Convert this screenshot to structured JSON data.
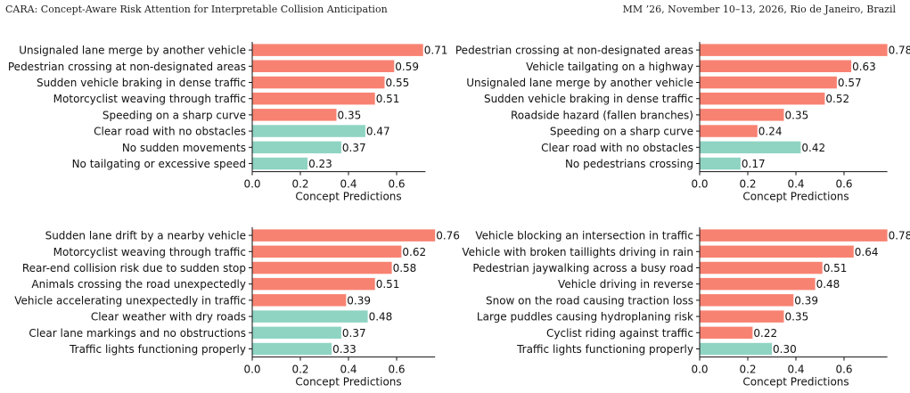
{
  "header": {
    "left": "CARA: Concept-Aware Risk Attention for Interpretable Collision Anticipation",
    "right": "MM ’26, November 10–13, 2026, Rio de Janeiro, Brazil"
  },
  "colors": {
    "risk": "#f88272",
    "safe": "#8fd4c3"
  },
  "chart_data": [
    {
      "type": "bar",
      "orientation": "horizontal",
      "categories": [
        "Unsignaled lane merge by another vehicle",
        "Pedestrian crossing at non-designated areas",
        "Sudden vehicle braking in dense traffic",
        "Motorcyclist weaving through traffic",
        "Speeding on a sharp curve",
        "Clear road with no obstacles",
        "No sudden movements",
        "No tailgating or excessive speed"
      ],
      "values": [
        0.71,
        0.59,
        0.55,
        0.51,
        0.35,
        0.47,
        0.37,
        0.23
      ],
      "labels": [
        "0.71",
        "0.59",
        "0.55",
        "0.51",
        "0.35",
        "0.47",
        "0.37",
        "0.23"
      ],
      "group": [
        "risk",
        "risk",
        "risk",
        "risk",
        "risk",
        "safe",
        "safe",
        "safe"
      ],
      "xlabel": "Concept Predictions",
      "xticks": [
        "0.0",
        "0.2",
        "0.4",
        "0.6"
      ],
      "xlim": [
        0,
        0.72
      ]
    },
    {
      "type": "bar",
      "orientation": "horizontal",
      "categories": [
        "Pedestrian crossing at non-designated areas",
        "Vehicle tailgating on a highway",
        "Unsignaled lane merge by another vehicle",
        "Sudden vehicle braking in dense traffic",
        "Roadside hazard (fallen branches)",
        "Speeding on a sharp curve",
        "Clear road with no obstacles",
        "No pedestrians crossing"
      ],
      "values": [
        0.78,
        0.63,
        0.57,
        0.52,
        0.35,
        0.24,
        0.42,
        0.17
      ],
      "labels": [
        "0.78",
        "0.63",
        "0.57",
        "0.52",
        "0.35",
        "0.24",
        "0.42",
        "0.17"
      ],
      "group": [
        "risk",
        "risk",
        "risk",
        "risk",
        "risk",
        "risk",
        "safe",
        "safe"
      ],
      "xlabel": "Concept Predictions",
      "xticks": [
        "0.0",
        "0.2",
        "0.4",
        "0.6"
      ],
      "xlim": [
        0,
        0.78
      ]
    },
    {
      "type": "bar",
      "orientation": "horizontal",
      "categories": [
        "Sudden lane drift by a nearby vehicle",
        "Motorcyclist weaving through traffic",
        "Rear-end collision risk due to sudden stop",
        "Animals crossing the road unexpectedly",
        "Vehicle accelerating unexpectedly in traffic",
        "Clear weather with dry roads",
        "Clear lane markings and no obstructions",
        "Traffic lights functioning properly"
      ],
      "values": [
        0.76,
        0.62,
        0.58,
        0.51,
        0.39,
        0.48,
        0.37,
        0.33
      ],
      "labels": [
        "0.76",
        "0.62",
        "0.58",
        "0.51",
        "0.39",
        "0.48",
        "0.37",
        "0.33"
      ],
      "group": [
        "risk",
        "risk",
        "risk",
        "risk",
        "risk",
        "safe",
        "safe",
        "safe"
      ],
      "xlabel": "Concept Predictions",
      "xticks": [
        "0.0",
        "0.2",
        "0.4",
        "0.6"
      ],
      "xlim": [
        0,
        0.76
      ]
    },
    {
      "type": "bar",
      "orientation": "horizontal",
      "categories": [
        "Vehicle blocking an intersection in traffic",
        "Vehicle with broken taillights driving in rain",
        "Pedestrian jaywalking across a busy road",
        "Vehicle driving in reverse",
        "Snow on the road causing traction loss",
        "Large puddles causing hydroplaning risk",
        "Cyclist riding against traffic",
        "Traffic lights functioning properly"
      ],
      "values": [
        0.78,
        0.64,
        0.51,
        0.48,
        0.39,
        0.35,
        0.22,
        0.3
      ],
      "labels": [
        "0.78",
        "0.64",
        "0.51",
        "0.48",
        "0.39",
        "0.35",
        "0.22",
        "0.30"
      ],
      "group": [
        "risk",
        "risk",
        "risk",
        "risk",
        "risk",
        "risk",
        "risk",
        "safe"
      ],
      "xlabel": "Concept Predictions",
      "xticks": [
        "0.0",
        "0.2",
        "0.4",
        "0.6"
      ],
      "xlim": [
        0,
        0.78
      ]
    }
  ]
}
